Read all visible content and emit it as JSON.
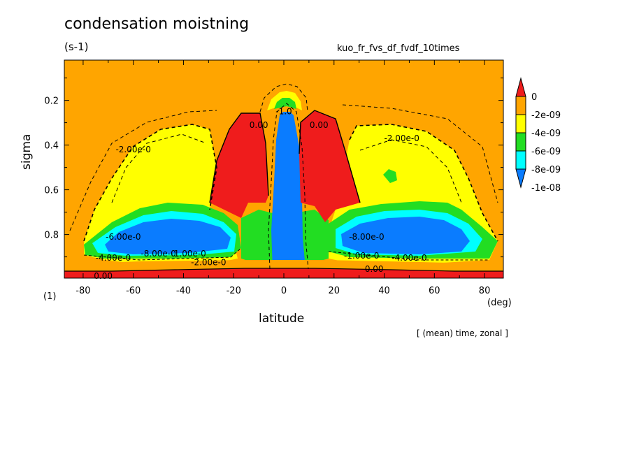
{
  "chart_data": {
    "type": "contour",
    "title": "condensation moistning",
    "units": "(s-1)",
    "experiment": "kuo_fr_fvs_df_fvdf_10times",
    "xlabel": "latitude",
    "x_unit": "(deg)",
    "ylabel": "sigma",
    "panel_number": "(1)",
    "footer": "[ (mean) time, zonal ]",
    "xlim": [
      -87.5,
      87.5
    ],
    "ylim": [
      0.995,
      0.02
    ],
    "x_ticks": [
      -80,
      -60,
      -40,
      -20,
      0,
      20,
      40,
      60,
      80
    ],
    "y_ticks": [
      0.2,
      0.4,
      0.6,
      0.8
    ],
    "colorbar": {
      "levels": [
        "0",
        "-2e-09",
        "-4e-09",
        "-6e-09",
        "-8e-09",
        "-1e-08"
      ],
      "colors": [
        "#ef1c1c",
        "#ffa500",
        "#ffff00",
        "#22dd22",
        "#00ffff",
        "#0a7cff"
      ],
      "extend": "both"
    },
    "contour_labels": [
      {
        "text": "0.00",
        "x": -72,
        "y": 0.985
      },
      {
        "text": "-2.00e-0",
        "x": -60,
        "y": 0.42
      },
      {
        "text": "-2.00e-0",
        "x": 47,
        "y": 0.37
      },
      {
        "text": "0.00",
        "x": -10,
        "y": 0.31
      },
      {
        "text": "0.00",
        "x": 14,
        "y": 0.31
      },
      {
        "text": "-1.0",
        "x": 0,
        "y": 0.25
      },
      {
        "text": "-6.00e-0",
        "x": -64,
        "y": 0.81
      },
      {
        "text": "-8.00e-0",
        "x": 33,
        "y": 0.81
      },
      {
        "text": "-8.00e-0",
        "x": -50,
        "y": 0.885
      },
      {
        "text": "-1.00e-0",
        "x": -38,
        "y": 0.885
      },
      {
        "text": "-4.00e-0",
        "x": -68,
        "y": 0.905
      },
      {
        "text": "-2.00e-0",
        "x": -30,
        "y": 0.925
      },
      {
        "text": "-1.00e-0",
        "x": 31,
        "y": 0.895
      },
      {
        "text": "-4.00e-0",
        "x": 50,
        "y": 0.905
      },
      {
        "text": "0.00",
        "x": 36,
        "y": 0.955
      }
    ]
  }
}
